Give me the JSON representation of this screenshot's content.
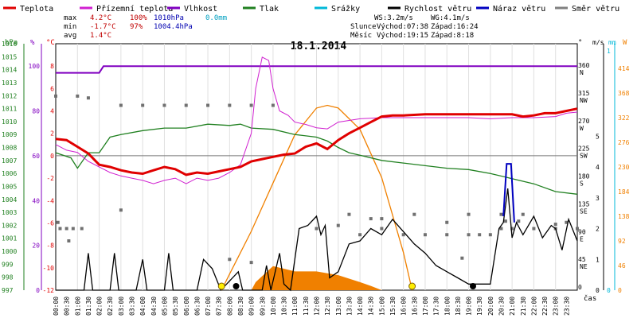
{
  "chart_data": {
    "type": "line",
    "title": "18.1.2014",
    "legend": [
      {
        "label": "Teplota",
        "color": "#e00000"
      },
      {
        "label": "Přízemní teplota",
        "color": "#d020d0"
      },
      {
        "label": "Vlhkost",
        "color": "#8000c0"
      },
      {
        "label": "Tlak",
        "color": "#208020"
      },
      {
        "label": "Srážky",
        "color": "#00b8d8"
      },
      {
        "label": "Rychlost větru",
        "color": "#000000"
      },
      {
        "label": "Náraz větru",
        "color": "#0000c0"
      },
      {
        "label": "Směr větru",
        "color": "#808080"
      }
    ],
    "stats": {
      "row1": [
        "max",
        "4.2°C",
        "100%",
        "1010hPa",
        "0.0mm"
      ],
      "row2": [
        "min",
        "-1.7°C",
        "97%",
        "1004.4hPa"
      ],
      "row3": [
        "avg",
        "1.4°C"
      ],
      "wind": [
        "WS:3.2m/s",
        "WG:4.1m/s"
      ],
      "sun": [
        "Slunce",
        "Východ:07:38",
        "Západ:16:24"
      ],
      "moon": [
        "Měsíc",
        "Východ:19:15",
        "Západ:8:18"
      ]
    },
    "axis_units": {
      "hpa": "hPa",
      "pct": "%",
      "temp": "°C",
      "deg": "°",
      "ms": "m/s",
      "mm": "mm",
      "wm2": "W",
      "cas": "čas"
    },
    "hpa_ticks": [
      "1016",
      "1015",
      "1014",
      "1013",
      "1012",
      "1011",
      "1010",
      "1009",
      "1008",
      "1007",
      "1006",
      "1005",
      "1004",
      "1003",
      "1002",
      "1001",
      "1000",
      "999",
      "998",
      "997"
    ],
    "pct_ticks": [
      "100",
      "80",
      "60",
      "40",
      "20",
      "0"
    ],
    "temp_ticks": [
      "8",
      "6",
      "4",
      "2",
      "0",
      "-2",
      "-4",
      "-6",
      "-8",
      "-10",
      "-12"
    ],
    "dir_ticks": [
      [
        "360",
        "N"
      ],
      [
        "315",
        "NW"
      ],
      [
        "270",
        "W"
      ],
      [
        "225",
        "SW"
      ],
      [
        "180",
        "S"
      ],
      [
        "135",
        "SE"
      ],
      [
        "90",
        "E"
      ],
      [
        "45",
        "NE"
      ],
      [
        "0",
        ""
      ]
    ],
    "ms_ticks": [
      "0",
      "1",
      "2",
      "3",
      "4",
      "5"
    ],
    "wm2_ticks": [
      "414",
      "368",
      "322",
      "276",
      "230",
      "184",
      "138",
      "92",
      "46",
      "0"
    ],
    "mm_ticks": [
      "1",
      "0"
    ],
    "x_labels": [
      "00:00",
      "00:30",
      "01:00",
      "01:30",
      "02:00",
      "02:30",
      "03:00",
      "03:30",
      "04:00",
      "04:30",
      "05:00",
      "05:30",
      "06:00",
      "06:30",
      "07:00",
      "07:30",
      "08:00",
      "08:30",
      "09:00",
      "09:30",
      "10:00",
      "10:30",
      "11:00",
      "11:30",
      "12:00",
      "12:30",
      "13:00",
      "13:30",
      "14:00",
      "14:30",
      "15:00",
      "15:30",
      "16:00",
      "16:30",
      "17:00",
      "17:30",
      "18:00",
      "18:30",
      "19:00",
      "19:30",
      "20:00",
      "20:30",
      "21:00",
      "21:30",
      "22:00",
      "22:30",
      "23:00",
      "23:30"
    ],
    "xlim_hours": [
      0,
      24
    ],
    "temp_ylim": [
      -12,
      10
    ],
    "series": {
      "temperature": [
        [
          0,
          1.5
        ],
        [
          0.5,
          1.4
        ],
        [
          1,
          0.8
        ],
        [
          1.5,
          0.2
        ],
        [
          2,
          -0.8
        ],
        [
          2.5,
          -1.0
        ],
        [
          3,
          -1.3
        ],
        [
          3.5,
          -1.5
        ],
        [
          4,
          -1.6
        ],
        [
          4.5,
          -1.3
        ],
        [
          5,
          -1.0
        ],
        [
          5.5,
          -1.2
        ],
        [
          6,
          -1.7
        ],
        [
          6.5,
          -1.5
        ],
        [
          7,
          -1.6
        ],
        [
          7.5,
          -1.4
        ],
        [
          8,
          -1.2
        ],
        [
          8.5,
          -1.0
        ],
        [
          9,
          -0.5
        ],
        [
          9.5,
          -0.3
        ],
        [
          10,
          -0.1
        ],
        [
          10.5,
          0.1
        ],
        [
          11,
          0.2
        ],
        [
          11.5,
          0.8
        ],
        [
          12,
          1.1
        ],
        [
          12.5,
          0.6
        ],
        [
          13,
          1.4
        ],
        [
          13.5,
          2.0
        ],
        [
          14,
          2.5
        ],
        [
          14.5,
          3.0
        ],
        [
          15,
          3.5
        ],
        [
          15.5,
          3.6
        ],
        [
          16,
          3.6
        ],
        [
          17,
          3.7
        ],
        [
          18,
          3.7
        ],
        [
          19,
          3.7
        ],
        [
          20,
          3.7
        ],
        [
          21,
          3.7
        ],
        [
          21.5,
          3.5
        ],
        [
          22,
          3.6
        ],
        [
          22.5,
          3.8
        ],
        [
          23,
          3.8
        ],
        [
          23.5,
          4.0
        ],
        [
          24,
          4.2
        ]
      ],
      "ground_temperature": [
        [
          0,
          1.0
        ],
        [
          0.5,
          0.5
        ],
        [
          1,
          0.3
        ],
        [
          1.5,
          -0.5
        ],
        [
          2,
          -1.0
        ],
        [
          2.5,
          -1.5
        ],
        [
          3,
          -1.8
        ],
        [
          3.5,
          -2.0
        ],
        [
          4,
          -2.2
        ],
        [
          4.5,
          -2.5
        ],
        [
          5,
          -2.2
        ],
        [
          5.5,
          -2.0
        ],
        [
          6,
          -2.5
        ],
        [
          6.5,
          -2.0
        ],
        [
          7,
          -2.2
        ],
        [
          7.5,
          -2.0
        ],
        [
          8,
          -1.5
        ],
        [
          8.5,
          -0.8
        ],
        [
          9,
          2.0
        ],
        [
          9.2,
          6.0
        ],
        [
          9.5,
          8.8
        ],
        [
          9.8,
          8.5
        ],
        [
          10,
          6.0
        ],
        [
          10.3,
          4.0
        ],
        [
          10.7,
          3.6
        ],
        [
          11,
          3.0
        ],
        [
          11.5,
          2.8
        ],
        [
          12,
          2.5
        ],
        [
          12.5,
          2.4
        ],
        [
          13,
          3.0
        ],
        [
          14,
          3.3
        ],
        [
          15,
          3.4
        ],
        [
          16,
          3.4
        ],
        [
          17,
          3.4
        ],
        [
          18,
          3.4
        ],
        [
          19,
          3.4
        ],
        [
          20,
          3.3
        ],
        [
          21,
          3.4
        ],
        [
          22,
          3.4
        ],
        [
          23,
          3.5
        ],
        [
          23.5,
          3.8
        ],
        [
          24,
          3.9
        ]
      ],
      "humidity_pct": [
        [
          0,
          97
        ],
        [
          2,
          97
        ],
        [
          2.2,
          100
        ],
        [
          24,
          100
        ]
      ],
      "pressure_hpa": [
        [
          0,
          1007.6
        ],
        [
          0.7,
          1007.2
        ],
        [
          1,
          1006.4
        ],
        [
          1.5,
          1007.6
        ],
        [
          2,
          1007.6
        ],
        [
          2.5,
          1008.8
        ],
        [
          3,
          1009.0
        ],
        [
          4,
          1009.3
        ],
        [
          5,
          1009.5
        ],
        [
          6,
          1009.5
        ],
        [
          7,
          1009.8
        ],
        [
          8,
          1009.7
        ],
        [
          8.5,
          1009.8
        ],
        [
          9,
          1009.5
        ],
        [
          10,
          1009.4
        ],
        [
          11,
          1009.0
        ],
        [
          12,
          1008.8
        ],
        [
          12.5,
          1008.5
        ],
        [
          13,
          1008.0
        ],
        [
          13.5,
          1007.6
        ],
        [
          14,
          1007.4
        ],
        [
          15,
          1007.0
        ],
        [
          16,
          1006.8
        ],
        [
          17,
          1006.6
        ],
        [
          18,
          1006.4
        ],
        [
          19,
          1006.3
        ],
        [
          20,
          1006.0
        ],
        [
          21,
          1005.6
        ],
        [
          22,
          1005.2
        ],
        [
          23,
          1004.6
        ],
        [
          24,
          1004.4
        ]
      ],
      "wind_speed_ms": [
        [
          0,
          0
        ],
        [
          1.3,
          0
        ],
        [
          1.5,
          1.2
        ],
        [
          1.7,
          0
        ],
        [
          2.5,
          0
        ],
        [
          2.7,
          1.2
        ],
        [
          2.9,
          0
        ],
        [
          3.7,
          0
        ],
        [
          4,
          1.0
        ],
        [
          4.2,
          0
        ],
        [
          5,
          0
        ],
        [
          5.2,
          1.2
        ],
        [
          5.4,
          0
        ],
        [
          6.5,
          0
        ],
        [
          6.8,
          1.0
        ],
        [
          7.2,
          0.7
        ],
        [
          7.6,
          0
        ],
        [
          8.4,
          0.6
        ],
        [
          8.6,
          0
        ],
        [
          9.5,
          0
        ],
        [
          9.7,
          0.8
        ],
        [
          9.9,
          0
        ],
        [
          10.3,
          1.2
        ],
        [
          10.5,
          0.2
        ],
        [
          10.8,
          0
        ],
        [
          11.2,
          2.0
        ],
        [
          11.6,
          2.1
        ],
        [
          12.0,
          2.4
        ],
        [
          12.2,
          1.8
        ],
        [
          12.4,
          2.1
        ],
        [
          12.6,
          0.4
        ],
        [
          13,
          0.6
        ],
        [
          13.5,
          1.5
        ],
        [
          14,
          1.6
        ],
        [
          14.5,
          2.0
        ],
        [
          15,
          1.8
        ],
        [
          15.5,
          2.3
        ],
        [
          16,
          1.9
        ],
        [
          16.5,
          1.5
        ],
        [
          17,
          1.2
        ],
        [
          17.5,
          0.8
        ],
        [
          18,
          0.6
        ],
        [
          18.5,
          0.4
        ],
        [
          19,
          0.2
        ],
        [
          19.5,
          0.2
        ],
        [
          20,
          0.2
        ],
        [
          20.4,
          2.0
        ],
        [
          20.6,
          2.2
        ],
        [
          20.8,
          3.3
        ],
        [
          21,
          1.7
        ],
        [
          21.2,
          2.2
        ],
        [
          21.5,
          1.8
        ],
        [
          22,
          2.4
        ],
        [
          22.4,
          1.7
        ],
        [
          22.8,
          2.1
        ],
        [
          23,
          2.0
        ],
        [
          23.3,
          1.3
        ],
        [
          23.6,
          2.3
        ],
        [
          24,
          1.6
        ]
      ],
      "wind_gust_ms": [
        [
          20.6,
          2.4
        ],
        [
          20.75,
          4.1
        ],
        [
          20.95,
          4.1
        ],
        [
          21.1,
          2.2
        ]
      ],
      "solar_w": [
        [
          7.63,
          0
        ],
        [
          8,
          30
        ],
        [
          9,
          110
        ],
        [
          10,
          200
        ],
        [
          11,
          290
        ],
        [
          12,
          340
        ],
        [
          12.5,
          345
        ],
        [
          13,
          340
        ],
        [
          14,
          300
        ],
        [
          15,
          210
        ],
        [
          16,
          70
        ],
        [
          16.4,
          0
        ]
      ],
      "solar_fill_w": [
        [
          9,
          0
        ],
        [
          9.2,
          15
        ],
        [
          9.6,
          30
        ],
        [
          10,
          45
        ],
        [
          10.5,
          40
        ],
        [
          11,
          35
        ],
        [
          12,
          35
        ],
        [
          13,
          28
        ],
        [
          14,
          15
        ],
        [
          14.5,
          8
        ],
        [
          15,
          0
        ]
      ],
      "wind_direction_deg": [
        [
          0,
          315
        ],
        [
          1,
          315
        ],
        [
          1.5,
          312
        ],
        [
          3,
          300
        ],
        [
          4,
          300
        ],
        [
          5,
          300
        ],
        [
          6,
          300
        ],
        [
          7,
          300
        ],
        [
          8,
          300
        ],
        [
          9,
          300
        ],
        [
          10,
          300
        ],
        [
          0.2,
          100
        ],
        [
          0.5,
          100
        ],
        [
          0.8,
          100
        ],
        [
          1.2,
          100
        ],
        [
          12,
          100
        ],
        [
          13,
          105
        ],
        [
          14,
          90
        ],
        [
          15,
          100
        ],
        [
          16,
          90
        ],
        [
          17,
          90
        ],
        [
          18,
          90
        ],
        [
          19,
          90
        ],
        [
          19.5,
          90
        ],
        [
          20,
          90
        ],
        [
          20.5,
          100
        ],
        [
          21,
          100
        ],
        [
          22,
          100
        ],
        [
          23,
          100
        ],
        [
          24,
          100
        ],
        [
          13.5,
          123
        ],
        [
          14.5,
          116
        ],
        [
          15,
          116
        ],
        [
          16.5,
          123
        ],
        [
          18,
          110
        ],
        [
          19,
          123
        ],
        [
          20.5,
          123
        ],
        [
          21.5,
          123
        ],
        [
          23,
          107
        ],
        [
          23.5,
          110
        ],
        [
          0.1,
          110
        ],
        [
          0.6,
          80
        ],
        [
          3.0,
          130
        ],
        [
          8,
          50
        ],
        [
          9,
          45
        ],
        [
          18.7,
          52
        ],
        [
          20.7,
          112
        ],
        [
          21.3,
          112
        ]
      ],
      "rain_markers_hours": [
        [
          7.63,
          "sunrise"
        ],
        [
          8.3,
          "rain"
        ],
        [
          16.4,
          "sunset"
        ],
        [
          19.2,
          "rain"
        ]
      ]
    }
  }
}
